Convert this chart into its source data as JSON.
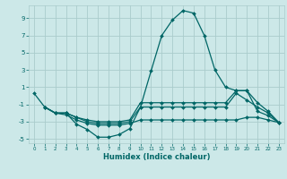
{
  "xlabel": "Humidex (Indice chaleur)",
  "ylabel": "",
  "xlim": [
    -0.5,
    23.5
  ],
  "ylim": [
    -5.5,
    10.5
  ],
  "yticks": [
    -5,
    -3,
    -1,
    1,
    3,
    5,
    7,
    9
  ],
  "xticks": [
    0,
    1,
    2,
    3,
    4,
    5,
    6,
    7,
    8,
    9,
    10,
    11,
    12,
    13,
    14,
    15,
    16,
    17,
    18,
    19,
    20,
    21,
    22,
    23
  ],
  "bg_color": "#cce8e8",
  "grid_color": "#aacccc",
  "line_color": "#006666",
  "series": [
    {
      "x": [
        0,
        1,
        2,
        3,
        4,
        5,
        6,
        7,
        8,
        9,
        10,
        11,
        12,
        13,
        14,
        15,
        16,
        17,
        18,
        19,
        20,
        21,
        22,
        23
      ],
      "y": [
        0.3,
        -1.3,
        -2.0,
        -2.0,
        -3.3,
        -3.9,
        -4.8,
        -4.8,
        -4.5,
        -3.8,
        -1.3,
        2.9,
        7.0,
        8.8,
        9.9,
        9.6,
        7.0,
        3.0,
        1.0,
        0.6,
        0.6,
        -1.8,
        -2.3,
        -3.1
      ]
    },
    {
      "x": [
        1,
        2,
        3,
        4,
        5,
        6,
        7,
        8,
        9,
        10,
        11,
        12,
        13,
        14,
        15,
        16,
        17,
        18,
        19,
        20,
        21,
        22,
        23
      ],
      "y": [
        -1.3,
        -2.0,
        -2.0,
        -2.5,
        -2.8,
        -3.0,
        -3.0,
        -3.0,
        -2.8,
        -0.8,
        -0.8,
        -0.8,
        -0.8,
        -0.8,
        -0.8,
        -0.8,
        -0.8,
        -0.8,
        0.6,
        0.6,
        -0.8,
        -1.8,
        -3.1
      ]
    },
    {
      "x": [
        1,
        2,
        3,
        4,
        5,
        6,
        7,
        8,
        9,
        10,
        11,
        12,
        13,
        14,
        15,
        16,
        17,
        18,
        19,
        20,
        21,
        22,
        23
      ],
      "y": [
        -1.3,
        -2.0,
        -2.0,
        -2.5,
        -3.0,
        -3.2,
        -3.2,
        -3.2,
        -3.0,
        -1.3,
        -1.3,
        -1.3,
        -1.3,
        -1.3,
        -1.3,
        -1.3,
        -1.3,
        -1.3,
        0.3,
        -0.5,
        -1.3,
        -2.0,
        -3.1
      ]
    },
    {
      "x": [
        1,
        2,
        3,
        4,
        5,
        6,
        7,
        8,
        9,
        10,
        11,
        12,
        13,
        14,
        15,
        16,
        17,
        18,
        19,
        20,
        21,
        22,
        23
      ],
      "y": [
        -1.3,
        -2.0,
        -2.2,
        -2.8,
        -3.2,
        -3.4,
        -3.4,
        -3.4,
        -3.2,
        -2.8,
        -2.8,
        -2.8,
        -2.8,
        -2.8,
        -2.8,
        -2.8,
        -2.8,
        -2.8,
        -2.8,
        -2.5,
        -2.5,
        -2.8,
        -3.1
      ]
    }
  ]
}
